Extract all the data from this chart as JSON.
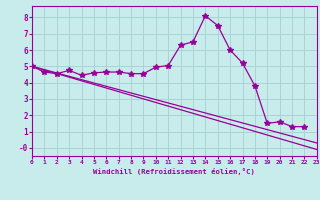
{
  "xlabel": "Windchill (Refroidissement éolien,°C)",
  "bg_color": "#c8ecec",
  "grid_color": "#aad4d4",
  "line_color": "#990099",
  "xlim": [
    0,
    23
  ],
  "ylim": [
    -0.5,
    8.7
  ],
  "main_series_x": [
    0,
    1,
    2,
    3,
    4,
    5,
    6,
    7,
    8,
    9,
    10,
    11,
    12,
    13,
    14,
    15,
    16,
    17,
    18,
    19,
    20,
    21,
    22
  ],
  "main_series_y": [
    5.0,
    4.65,
    4.55,
    4.75,
    4.45,
    4.6,
    4.65,
    4.65,
    4.55,
    4.55,
    4.95,
    5.05,
    6.3,
    6.5,
    8.1,
    7.5,
    6.0,
    5.2,
    3.8,
    1.5,
    1.6,
    1.3,
    1.3
  ],
  "diag_line1": {
    "x": [
      0,
      23
    ],
    "y": [
      5.0,
      -0.1
    ]
  },
  "diag_line2": {
    "x": [
      0,
      23
    ],
    "y": [
      5.0,
      0.3
    ]
  },
  "yticks": [
    0,
    1,
    2,
    3,
    4,
    5,
    6,
    7,
    8
  ],
  "ytick_labels": [
    "-0",
    "1",
    "2",
    "3",
    "4",
    "5",
    "6",
    "7",
    "8"
  ]
}
